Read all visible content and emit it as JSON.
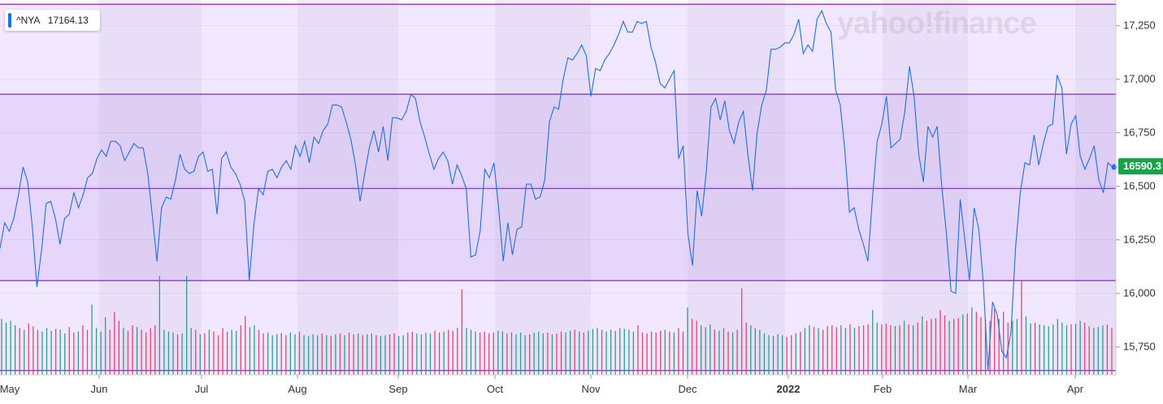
{
  "ticker": {
    "symbol": "^NYA",
    "value": "17164.13"
  },
  "watermark": "yahoo!finance",
  "last_price_label": "16590.3",
  "colors": {
    "line": "#1e6fe0",
    "volume_up": "#2e9e8b",
    "volume_down": "#e0466e",
    "band": "#7a2fb0",
    "last_price_bg": "#16a34a"
  },
  "chart_data": {
    "type": "line",
    "title": "",
    "xlabel": "",
    "ylabel": "",
    "ylim": [
      15620,
      17370
    ],
    "y_ticks": [
      "15,750",
      "16,000",
      "16,250",
      "16,500",
      "16,750",
      "17,000",
      "17,250"
    ],
    "y_tick_values": [
      15750,
      16000,
      16250,
      16500,
      16750,
      17000,
      17250
    ],
    "x_ticks": [
      "May",
      "Jun",
      "Jul",
      "Aug",
      "Sep",
      "Oct",
      "Nov",
      "Dec",
      "2022",
      "Feb",
      "Mar",
      "Apr"
    ],
    "bold_x_tick": "2022",
    "bands": [
      17350,
      16930,
      16490,
      16060,
      15640
    ],
    "series": [
      {
        "values": [
          16210,
          16330,
          16290,
          16350,
          16460,
          16590,
          16520,
          16310,
          16030,
          16200,
          16420,
          16430,
          16350,
          16230,
          16350,
          16370,
          16470,
          16400,
          16460,
          16540,
          16560,
          16630,
          16670,
          16640,
          16710,
          16710,
          16690,
          16620,
          16660,
          16700,
          16680,
          16680,
          16560,
          16360,
          16150,
          16400,
          16450,
          16440,
          16530,
          16650,
          16580,
          16560,
          16570,
          16640,
          16660,
          16570,
          16580,
          16370,
          16630,
          16660,
          16590,
          16560,
          16510,
          16430,
          16060,
          16320,
          16490,
          16460,
          16570,
          16580,
          16540,
          16590,
          16620,
          16580,
          16690,
          16640,
          16710,
          16610,
          16730,
          16700,
          16760,
          16790,
          16880,
          16880,
          16870,
          16800,
          16720,
          16600,
          16430,
          16560,
          16680,
          16760,
          16660,
          16780,
          16620,
          16820,
          16820,
          16810,
          16850,
          16930,
          16910,
          16800,
          16730,
          16650,
          16580,
          16630,
          16660,
          16620,
          16510,
          16600,
          16550,
          16490,
          16170,
          16180,
          16290,
          16580,
          16540,
          16610,
          16400,
          16150,
          16330,
          16180,
          16300,
          16310,
          16510,
          16510,
          16440,
          16450,
          16530,
          16800,
          16870,
          16860,
          17000,
          17100,
          17090,
          17120,
          17160,
          17110,
          16920,
          17050,
          17040,
          17090,
          17120,
          17160,
          17210,
          17270,
          17220,
          17220,
          17270,
          17260,
          17270,
          17150,
          17080,
          16980,
          16960,
          17000,
          17040,
          16630,
          16690,
          16280,
          16130,
          16480,
          16360,
          16570,
          16870,
          16910,
          16810,
          16900,
          16760,
          16700,
          16800,
          16850,
          16650,
          16480,
          16750,
          16880,
          16950,
          17140,
          17140,
          17150,
          17170,
          17170,
          17210,
          17280,
          17120,
          17160,
          17130,
          17280,
          17320,
          17260,
          17220,
          16950,
          16880,
          16670,
          16380,
          16400,
          16300,
          16230,
          16150,
          16450,
          16710,
          16790,
          16920,
          16680,
          16700,
          16720,
          16850,
          17060,
          16920,
          16650,
          16520,
          16780,
          16730,
          16780,
          16500,
          16280,
          16010,
          16000,
          16440,
          16250,
          16060,
          16400,
          16300,
          16050,
          15640,
          15960,
          15900,
          15730,
          15700,
          15820,
          16220,
          16470,
          16610,
          16600,
          16740,
          16600,
          16700,
          16780,
          16790,
          17020,
          16960,
          16650,
          16790,
          16830,
          16640,
          16580,
          16630,
          16690,
          16530,
          16470,
          16610,
          16590
        ]
      }
    ],
    "volume": {
      "colors": [
        "up",
        "up",
        "up",
        "up",
        "down",
        "up",
        "down",
        "down",
        "down",
        "up",
        "up",
        "up",
        "down",
        "up",
        "up",
        "down",
        "down",
        "up",
        "down",
        "down",
        "up",
        "up",
        "up",
        "up",
        "down",
        "down",
        "down",
        "up",
        "down",
        "down",
        "up",
        "down",
        "down",
        "down",
        "down",
        "up",
        "up",
        "up",
        "up",
        "down",
        "up",
        "up",
        "up",
        "down",
        "up",
        "down",
        "up",
        "down",
        "down",
        "down",
        "down",
        "up",
        "up",
        "down",
        "down",
        "up",
        "up",
        "down",
        "down",
        "up",
        "up",
        "up",
        "down",
        "down",
        "up",
        "up",
        "down",
        "up",
        "up",
        "up",
        "up",
        "down",
        "up",
        "down",
        "up",
        "down",
        "up",
        "down",
        "down",
        "up",
        "down",
        "up",
        "up",
        "down",
        "up",
        "up",
        "down",
        "down",
        "up",
        "up",
        "down",
        "down",
        "up",
        "up",
        "up",
        "up",
        "down",
        "down",
        "up",
        "down",
        "down",
        "down",
        "down",
        "up",
        "up",
        "up",
        "down",
        "down",
        "down",
        "down",
        "up",
        "up",
        "down",
        "up",
        "up",
        "up",
        "up",
        "down",
        "up",
        "up",
        "up",
        "down",
        "up",
        "down",
        "down",
        "up",
        "up",
        "down",
        "up",
        "down",
        "up",
        "up",
        "up",
        "down",
        "up",
        "up",
        "up",
        "up",
        "up",
        "up",
        "up",
        "down",
        "down",
        "down",
        "down",
        "down",
        "down",
        "up",
        "down",
        "up",
        "down",
        "down",
        "up",
        "down",
        "down",
        "up",
        "up",
        "up",
        "down",
        "up",
        "down",
        "down",
        "up",
        "down",
        "down",
        "down",
        "up",
        "up",
        "up",
        "up",
        "up",
        "up",
        "up",
        "up",
        "down",
        "down",
        "up",
        "down",
        "up",
        "up",
        "down",
        "up",
        "down",
        "down",
        "down",
        "down",
        "up",
        "up",
        "down",
        "up",
        "down",
        "down",
        "down",
        "up",
        "up",
        "down",
        "down",
        "down",
        "up",
        "down",
        "up",
        "down",
        "up",
        "down",
        "up",
        "down",
        "down",
        "down",
        "down",
        "down",
        "up",
        "down",
        "down",
        "up",
        "down",
        "up",
        "down",
        "down",
        "down",
        "down",
        "down",
        "down",
        "down",
        "down",
        "up",
        "up",
        "down",
        "up",
        "up",
        "down",
        "up",
        "up",
        "up",
        "up",
        "up",
        "up",
        "up",
        "down",
        "up",
        "up",
        "down",
        "down",
        "up",
        "up",
        "up",
        "down"
      ],
      "heights": [
        0.62,
        0.58,
        0.6,
        0.55,
        0.52,
        0.5,
        0.57,
        0.54,
        0.5,
        0.48,
        0.52,
        0.49,
        0.51,
        0.5,
        0.46,
        0.53,
        0.47,
        0.48,
        0.55,
        0.5,
        0.78,
        0.52,
        0.48,
        0.64,
        0.5,
        0.7,
        0.6,
        0.52,
        0.49,
        0.55,
        0.53,
        0.5,
        0.47,
        0.52,
        0.55,
        1.1,
        0.5,
        0.48,
        0.47,
        0.45,
        0.46,
        1.1,
        0.52,
        0.5,
        0.45,
        0.46,
        0.5,
        0.48,
        0.44,
        0.52,
        0.48,
        0.5,
        0.49,
        0.55,
        0.65,
        0.53,
        0.55,
        0.5,
        0.46,
        0.47,
        0.44,
        0.45,
        0.46,
        0.44,
        0.47,
        0.45,
        0.48,
        0.44,
        0.43,
        0.45,
        0.44,
        0.46,
        0.44,
        0.43,
        0.45,
        0.46,
        0.44,
        0.47,
        0.45,
        0.46,
        0.44,
        0.45,
        0.46,
        0.44,
        0.43,
        0.44,
        0.45,
        0.46,
        0.43,
        0.44,
        0.47,
        0.48,
        0.46,
        0.45,
        0.47,
        0.46,
        0.49,
        0.47,
        0.48,
        0.5,
        0.49,
        0.52,
        0.95,
        0.52,
        0.5,
        0.48,
        0.47,
        0.48,
        0.46,
        0.47,
        0.49,
        0.48,
        0.46,
        0.47,
        0.45,
        0.47,
        0.44,
        0.45,
        0.47,
        0.48,
        0.46,
        0.47,
        0.45,
        0.46,
        0.48,
        0.47,
        0.49,
        0.5,
        0.48,
        0.47,
        0.49,
        0.51,
        0.52,
        0.5,
        0.48,
        0.5,
        0.49,
        0.52,
        0.51,
        0.5,
        0.48,
        0.55,
        0.47,
        0.46,
        0.48,
        0.47,
        0.49,
        0.5,
        0.48,
        0.47,
        0.52,
        0.48,
        0.75,
        0.62,
        0.6,
        0.55,
        0.53,
        0.56,
        0.5,
        0.49,
        0.52,
        0.48,
        0.47,
        0.5,
        0.96,
        0.58,
        0.55,
        0.52,
        0.5,
        0.46,
        0.44,
        0.43,
        0.45,
        0.44,
        0.42,
        0.44,
        0.46,
        0.48,
        0.52,
        0.55,
        0.53,
        0.52,
        0.5,
        0.54,
        0.55,
        0.53,
        0.55,
        0.52,
        0.56,
        0.52,
        0.54,
        0.55,
        0.56,
        0.72,
        0.58,
        0.56,
        0.57,
        0.55,
        0.54,
        0.55,
        0.6,
        0.56,
        0.55,
        0.58,
        0.65,
        0.6,
        0.62,
        0.63,
        0.72,
        0.66,
        0.6,
        0.62,
        0.63,
        0.67,
        0.68,
        0.75,
        0.7,
        0.64,
        0.62,
        0.6,
        0.73,
        0.62,
        0.7,
        0.58,
        0.6,
        0.62,
        1.05,
        0.65,
        0.57,
        0.58,
        0.56,
        0.55,
        0.54,
        0.56,
        0.62,
        0.58,
        0.55,
        0.56,
        0.57,
        0.6,
        0.58,
        0.54,
        0.52,
        0.53,
        0.55,
        0.56,
        0.52
      ]
    }
  }
}
